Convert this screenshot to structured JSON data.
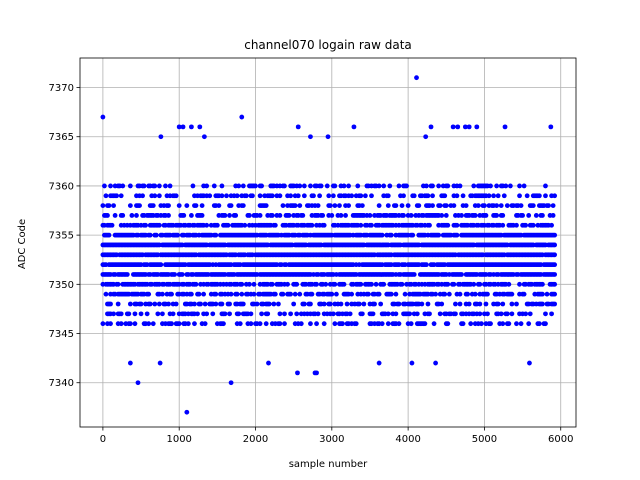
{
  "chart_data": {
    "type": "scatter",
    "title": "channel070 logain raw data",
    "xlabel": "sample number",
    "ylabel": "ADC Code",
    "xlim": [
      -300,
      6200
    ],
    "ylim": [
      7335.5,
      7373
    ],
    "xticks": [
      0,
      1000,
      2000,
      3000,
      4000,
      5000,
      6000
    ],
    "xtick_labels": [
      "0",
      "1000",
      "2000",
      "3000",
      "4000",
      "5000",
      "6000"
    ],
    "yticks": [
      7340,
      7345,
      7350,
      7355,
      7360,
      7365,
      7370
    ],
    "ytick_labels": [
      "7340",
      "7345",
      "7350",
      "7355",
      "7360",
      "7365",
      "7370"
    ],
    "grid": true,
    "marker_color": "#0000ff",
    "series": [
      {
        "sample_count": 5930,
        "band": {
          "low": 7343,
          "high": 7363,
          "dense_low": 7345,
          "dense_high": 7361,
          "center": 7353
        },
        "points": [
          {
            "x": 0,
            "y": 7367
          },
          {
            "x": 460,
            "y": 7340
          },
          {
            "x": 1100,
            "y": 7337
          },
          {
            "x": 1680,
            "y": 7340
          },
          {
            "x": 1820,
            "y": 7367
          },
          {
            "x": 4110,
            "y": 7371
          },
          {
            "x": 2550,
            "y": 7341
          },
          {
            "x": 2780,
            "y": 7341
          },
          {
            "x": 2800,
            "y": 7341
          },
          {
            "x": 1000,
            "y": 7366
          },
          {
            "x": 1050,
            "y": 7366
          },
          {
            "x": 1160,
            "y": 7366
          },
          {
            "x": 1270,
            "y": 7366
          },
          {
            "x": 2560,
            "y": 7366
          },
          {
            "x": 2720,
            "y": 7365
          },
          {
            "x": 2950,
            "y": 7365
          },
          {
            "x": 3290,
            "y": 7366
          },
          {
            "x": 4230,
            "y": 7365
          },
          {
            "x": 4300,
            "y": 7366
          },
          {
            "x": 4590,
            "y": 7366
          },
          {
            "x": 4650,
            "y": 7366
          },
          {
            "x": 4750,
            "y": 7366
          },
          {
            "x": 4800,
            "y": 7366
          },
          {
            "x": 4900,
            "y": 7366
          },
          {
            "x": 5270,
            "y": 7366
          },
          {
            "x": 5870,
            "y": 7366
          },
          {
            "x": 760,
            "y": 7365
          },
          {
            "x": 1330,
            "y": 7365
          },
          {
            "x": 4050,
            "y": 7342
          },
          {
            "x": 4360,
            "y": 7342
          },
          {
            "x": 360,
            "y": 7342
          },
          {
            "x": 750,
            "y": 7342
          },
          {
            "x": 2170,
            "y": 7342
          },
          {
            "x": 3620,
            "y": 7342
          },
          {
            "x": 5590,
            "y": 7342
          }
        ]
      }
    ]
  }
}
